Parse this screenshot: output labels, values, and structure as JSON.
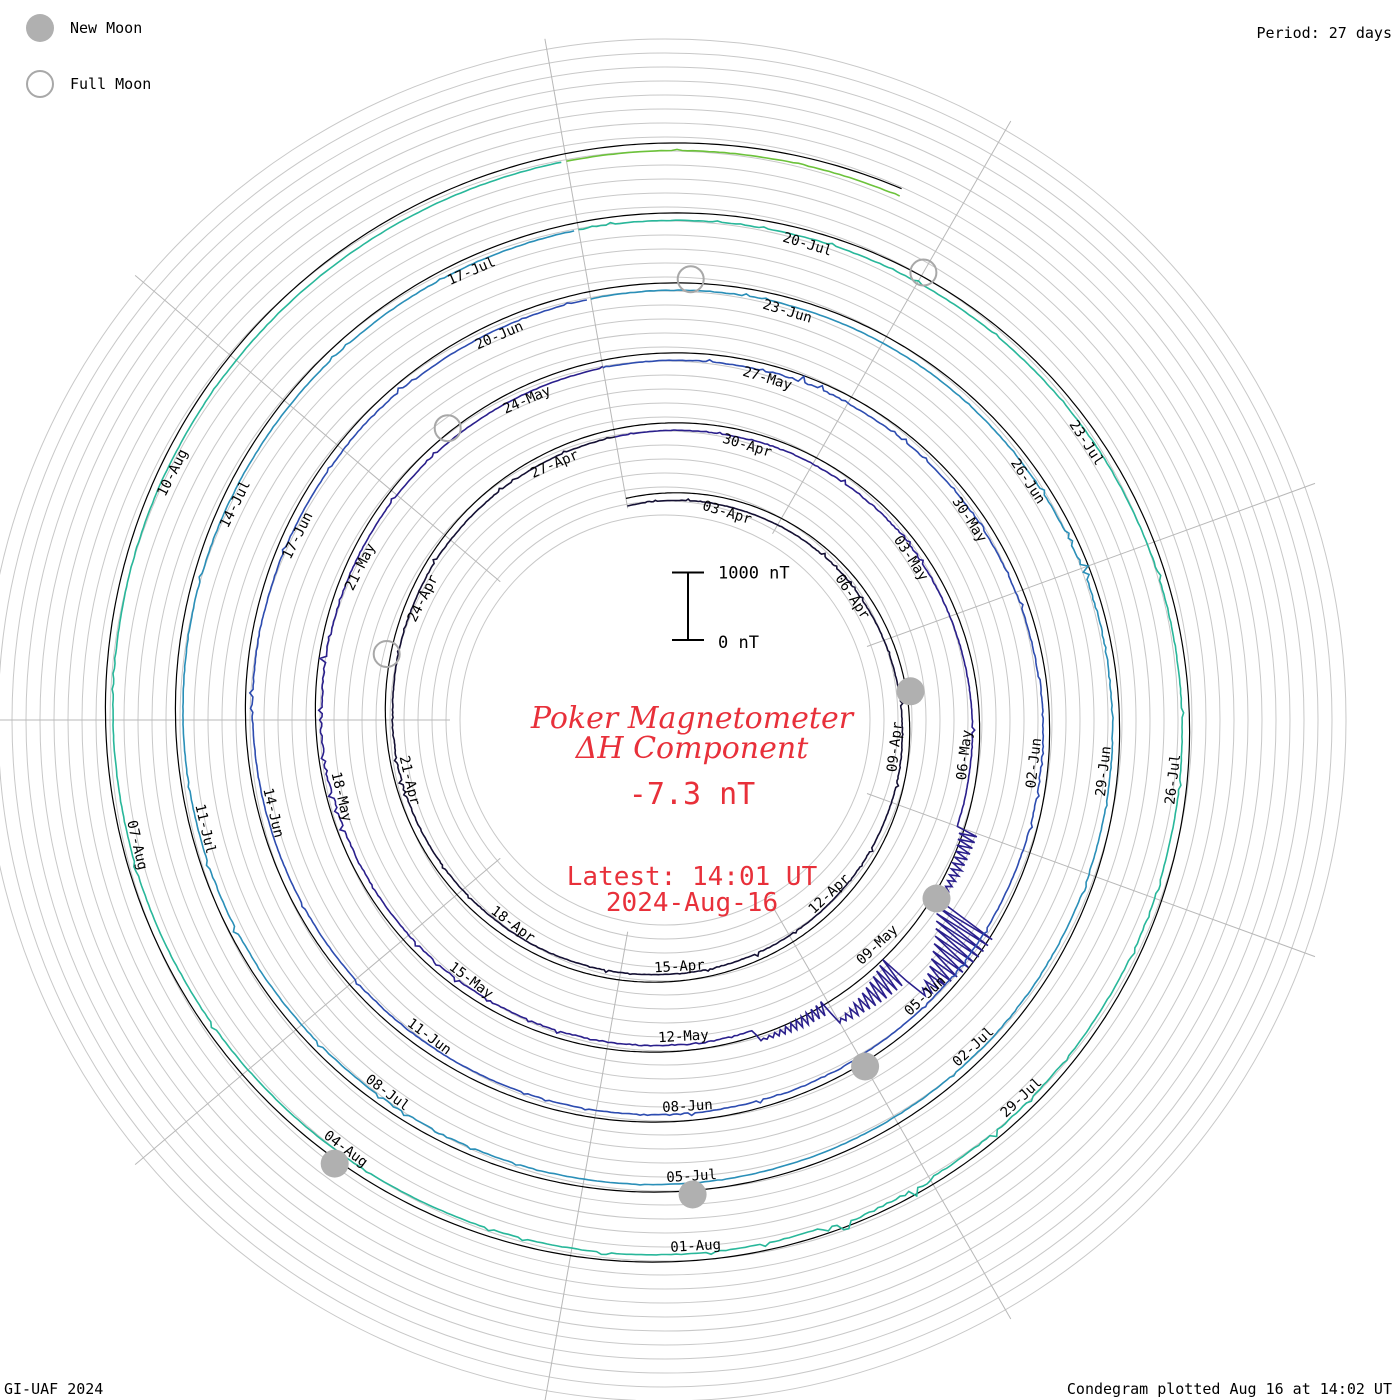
{
  "legend": {
    "new_moon": "New Moon",
    "full_moon": "Full Moon"
  },
  "period_label": "Period: 27 days",
  "footer_left": "GI-UAF 2024",
  "footer_right": "Condegram plotted Aug 16 at 14:02 UT",
  "colors": {
    "title": "#e8303a",
    "grid": "#c8c8c8",
    "baseline": "#000000",
    "moon": "#b0b0b0",
    "rotation_colors": [
      "#141033",
      "#2a1f8c",
      "#2d4cb0",
      "#2a8fb8",
      "#28b79a",
      "#6cc23a",
      "#b8b020",
      "#c08018",
      "#c04a10",
      "#b01818"
    ]
  },
  "chart_data": {
    "type": "line",
    "subtype": "condegram-spiral",
    "title_line1": "Poker Magnetometer",
    "title_line2": "ΔH Component",
    "current_value": "-7.3 nT",
    "latest_line1": "Latest: 14:01 UT",
    "latest_line2": "2024-Aug-16",
    "scale": {
      "top_label": "1000 nT",
      "bottom_label": "0 nT"
    },
    "period_days": 27,
    "start_date": "2024-04-01",
    "end_date": "2024-08-16",
    "date_labels": [
      "03-Apr",
      "06-Apr",
      "09-Apr",
      "12-Apr",
      "15-Apr",
      "18-Apr",
      "21-Apr",
      "24-Apr",
      "27-Apr",
      "30-Apr",
      "03-May",
      "06-May",
      "09-May",
      "12-May",
      "15-May",
      "18-May",
      "21-May",
      "24-May",
      "27-May",
      "30-May",
      "02-Jun",
      "05-Jun",
      "08-Jun",
      "11-Jun",
      "14-Jun",
      "17-Jun",
      "20-Jun",
      "23-Jun",
      "26-Jun",
      "29-Jun",
      "02-Jul",
      "05-Jul",
      "08-Jul",
      "11-Jul",
      "14-Jul",
      "17-Jul",
      "20-Jul",
      "23-Jul",
      "26-Jul",
      "29-Jul",
      "01-Aug",
      "04-Aug",
      "07-Aug",
      "10-Aug"
    ],
    "new_moon_dates": [
      "2024-04-08",
      "2024-05-08",
      "2024-06-06",
      "2024-07-05",
      "2024-08-04"
    ],
    "full_moon_dates": [
      "2024-04-23",
      "2024-05-23",
      "2024-06-22",
      "2024-07-21"
    ],
    "series_daily_max_nT": [
      30,
      40,
      35,
      60,
      80,
      45,
      40,
      55,
      70,
      50,
      45,
      60,
      80,
      75,
      40,
      50,
      65,
      45,
      70,
      90,
      120,
      60,
      50,
      80,
      60,
      45,
      50,
      40,
      35,
      90,
      70,
      130,
      60,
      55,
      70,
      60,
      500,
      1800,
      900,
      400,
      200,
      120,
      90,
      60,
      80,
      70,
      100,
      250,
      130,
      80,
      60,
      50,
      45,
      40,
      50,
      60,
      140,
      60,
      40,
      50,
      70,
      150,
      70,
      50,
      60,
      45,
      120,
      70,
      40,
      40,
      60,
      80,
      50,
      40,
      60,
      90,
      60,
      40,
      110,
      50,
      45,
      60,
      70,
      50,
      45,
      40,
      60,
      150,
      80,
      50,
      70,
      90,
      60,
      50,
      45,
      40,
      50,
      60,
      70,
      60,
      80,
      50,
      45,
      60,
      50,
      40,
      45,
      55,
      60,
      40,
      50,
      50,
      45,
      60,
      70,
      50,
      40,
      60,
      80,
      120,
      300,
      90,
      60,
      50,
      40,
      45,
      60,
      70,
      50,
      40,
      60,
      45,
      50,
      40,
      40,
      35,
      30
    ]
  }
}
